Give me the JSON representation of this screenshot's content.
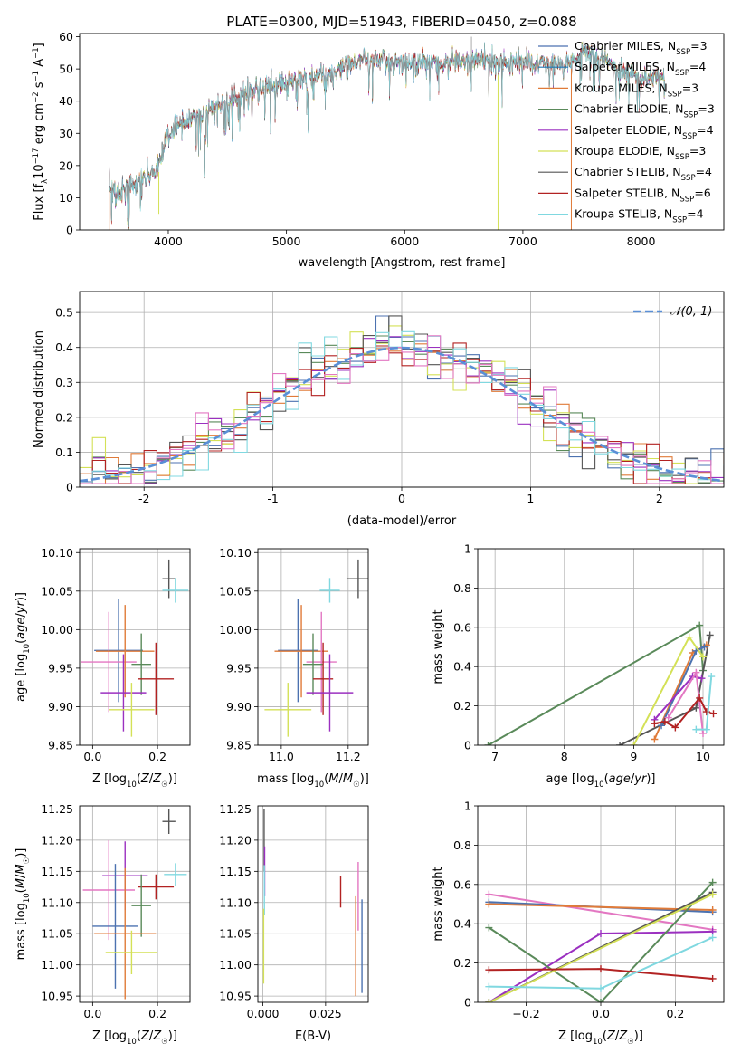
{
  "figure": {
    "title": "PLATE=0300, MJD=51943, FIBERID=0450, z=0.088"
  },
  "colors": {
    "chabrier_miles": "#4c72b0",
    "salpeter_miles": "#1f77b4",
    "kroupa_miles": "#e07b39",
    "chabrier_elodie": "#5a8a5a",
    "salpeter_elodie": "#9b30c0",
    "kroupa_elodie": "#d4e157",
    "chabrier_stelib": "#555555",
    "salpeter_stelib": "#b22222",
    "kroupa_stelib": "#80d8e0",
    "extra_pink": "#e377c2",
    "normal_curve": "#5a8fd6",
    "grid": "#b0b0b0"
  },
  "chart_data": [
    {
      "id": "spectrum",
      "type": "line",
      "title": "PLATE=0300, MJD=51943, FIBERID=0450, z=0.088",
      "xlabel": "wavelength [Angstrom, rest frame]",
      "ylabel": "Flux [f_λ 10^-17 erg cm^-2 s^-1 A^-1]",
      "xlim": [
        3250,
        8700
      ],
      "ylim": [
        0,
        61
      ],
      "xticks": [
        4000,
        5000,
        6000,
        7000,
        8000
      ],
      "yticks": [
        0,
        10,
        20,
        30,
        40,
        50,
        60
      ],
      "grid": false,
      "legend_position": "top-right",
      "legend": [
        {
          "label": "Chabrier MILES, N",
          "sub": "SSP",
          "suffix": "=3",
          "color": "#4c72b0"
        },
        {
          "label": "Salpeter MILES, N",
          "sub": "SSP",
          "suffix": "=4",
          "color": "#1f77b4"
        },
        {
          "label": "Kroupa MILES, N",
          "sub": "SSP",
          "suffix": "=3",
          "color": "#e07b39"
        },
        {
          "label": "Chabrier ELODIE, N",
          "sub": "SSP",
          "suffix": "=3",
          "color": "#5a8a5a"
        },
        {
          "label": "Salpeter ELODIE, N",
          "sub": "SSP",
          "suffix": "=4",
          "color": "#9b30c0"
        },
        {
          "label": "Kroupa ELODIE, N",
          "sub": "SSP",
          "suffix": "=3",
          "color": "#d4e157"
        },
        {
          "label": "Chabrier STELIB, N",
          "sub": "SSP",
          "suffix": "=4",
          "color": "#555555"
        },
        {
          "label": "Salpeter STELIB, N",
          "sub": "SSP",
          "suffix": "=6",
          "color": "#b22222"
        },
        {
          "label": "Kroupa STELIB, N",
          "sub": "SSP",
          "suffix": "=4",
          "color": "#80d8e0"
        }
      ],
      "continuum": {
        "x": [
          3500,
          3600,
          3700,
          3800,
          3900,
          3950,
          4000,
          4100,
          4200,
          4300,
          4400,
          4500,
          4600,
          4700,
          4800,
          4900,
          5000,
          5100,
          5200,
          5300,
          5400,
          5500,
          5600,
          5700,
          5800,
          5900,
          6000,
          6100,
          6200,
          6300,
          6400,
          6500,
          6600,
          6700,
          6800,
          6900,
          7000,
          7100,
          7200,
          7300,
          7400,
          7500,
          7600,
          7700,
          7800,
          7900,
          8000,
          8100,
          8200
        ],
        "y": [
          13,
          12,
          14,
          16,
          18,
          24,
          30,
          33,
          35,
          36,
          38,
          40,
          42,
          43,
          44,
          45,
          46,
          47,
          48,
          48,
          49,
          51,
          52,
          53,
          53,
          52,
          52,
          52,
          52,
          52,
          53,
          52,
          53,
          52,
          52,
          52,
          52,
          52,
          51,
          51,
          52,
          54,
          55,
          52,
          50,
          49,
          47,
          47,
          48
        ]
      },
      "spikes": [
        {
          "x": 3500,
          "y0": 0,
          "y1": 13,
          "color": "#e07b39"
        },
        {
          "x": 3920,
          "y0": 5,
          "y1": 18,
          "color": "#d4e157"
        },
        {
          "x": 6565,
          "y0": 52,
          "y1": 60,
          "color": "#aaaaaa"
        },
        {
          "x": 6790,
          "y0": 0,
          "y1": 48,
          "color": "#d4e157"
        },
        {
          "x": 7410,
          "y0": 0,
          "y1": 50,
          "color": "#e07b39"
        }
      ]
    },
    {
      "id": "residuals",
      "type": "histogram",
      "xlabel": "(data-model)/error",
      "ylabel": "Normed distribution",
      "xlim": [
        -2.5,
        2.5
      ],
      "ylim": [
        0,
        0.56
      ],
      "xticks": [
        -2,
        -1,
        0,
        1,
        2
      ],
      "yticks": [
        0.0,
        0.1,
        0.2,
        0.3,
        0.4,
        0.5
      ],
      "grid": true,
      "legend_position": "top-right",
      "legend": [
        {
          "label": "𝒩(0, 1)",
          "color": "#5a8fd6",
          "style": "dashed"
        }
      ],
      "bin_width": 0.1
    },
    {
      "id": "age_vs_Z",
      "type": "scatter",
      "xlabel": "Z [log10(Z/Z☉)]",
      "ylabel": "age [log10(age/yr)]",
      "xlim": [
        -0.04,
        0.3
      ],
      "ylim": [
        9.85,
        10.105
      ],
      "xticks": [
        0.0,
        0.2
      ],
      "xtick_labels": [
        "0.0",
        "0.2"
      ],
      "yticks": [
        9.85,
        9.9,
        9.95,
        10.0,
        10.05,
        10.1
      ],
      "ytick_labels": [
        "9.85",
        "9.90",
        "9.95",
        "10.00",
        "10.05",
        "10.10"
      ],
      "grid": true,
      "points": [
        {
          "x": 0.235,
          "y": 10.066,
          "xerr": 0.02,
          "yerr": 0.025,
          "color": "#555555"
        },
        {
          "x": 0.255,
          "y": 10.051,
          "xerr": 0.04,
          "yerr": 0.016,
          "color": "#80d8e0"
        },
        {
          "x": 0.08,
          "y": 9.973,
          "xerr": 0.075,
          "yerr": 0.067,
          "color": "#4c72b0"
        },
        {
          "x": 0.05,
          "y": 9.958,
          "xerr": 0.085,
          "yerr": 0.065,
          "color": "#e377c2"
        },
        {
          "x": 0.1,
          "y": 9.972,
          "xerr": 0.09,
          "yerr": 0.06,
          "color": "#e07b39"
        },
        {
          "x": 0.15,
          "y": 9.955,
          "xerr": 0.03,
          "yerr": 0.04,
          "color": "#5a8a5a"
        },
        {
          "x": 0.195,
          "y": 9.936,
          "xerr": 0.055,
          "yerr": 0.047,
          "color": "#b22222"
        },
        {
          "x": 0.095,
          "y": 9.918,
          "xerr": 0.07,
          "yerr": 0.05,
          "color": "#9b30c0"
        },
        {
          "x": 0.12,
          "y": 9.896,
          "xerr": 0.07,
          "yerr": 0.035,
          "color": "#d4e157"
        }
      ]
    },
    {
      "id": "age_vs_mass",
      "type": "scatter",
      "xlabel": "mass [log10(M/M☉)]",
      "ylabel": "",
      "xlim": [
        10.93,
        11.26
      ],
      "ylim": [
        9.85,
        10.105
      ],
      "xticks": [
        11.0,
        11.2
      ],
      "xtick_labels": [
        "11.0",
        "11.2"
      ],
      "yticks": [
        9.85,
        9.9,
        9.95,
        10.0,
        10.05,
        10.1
      ],
      "ytick_labels": [
        "9.85",
        "9.90",
        "9.95",
        "10.00",
        "10.05",
        "10.10"
      ],
      "grid": true,
      "points": [
        {
          "x": 11.23,
          "y": 10.066,
          "xerr": 0.035,
          "yerr": 0.025,
          "color": "#555555"
        },
        {
          "x": 11.145,
          "y": 10.051,
          "xerr": 0.03,
          "yerr": 0.016,
          "color": "#80d8e0"
        },
        {
          "x": 11.05,
          "y": 9.973,
          "xerr": 0.06,
          "yerr": 0.067,
          "color": "#4c72b0"
        },
        {
          "x": 11.06,
          "y": 9.972,
          "xerr": 0.08,
          "yerr": 0.06,
          "color": "#e07b39"
        },
        {
          "x": 11.12,
          "y": 9.958,
          "xerr": 0.045,
          "yerr": 0.065,
          "color": "#e377c2"
        },
        {
          "x": 11.095,
          "y": 9.955,
          "xerr": 0.03,
          "yerr": 0.04,
          "color": "#5a8a5a"
        },
        {
          "x": 11.125,
          "y": 9.936,
          "xerr": 0.03,
          "yerr": 0.047,
          "color": "#b22222"
        },
        {
          "x": 11.145,
          "y": 9.918,
          "xerr": 0.07,
          "yerr": 0.05,
          "color": "#9b30c0"
        },
        {
          "x": 11.02,
          "y": 9.896,
          "xerr": 0.07,
          "yerr": 0.035,
          "color": "#d4e157"
        }
      ]
    },
    {
      "id": "weight_vs_age",
      "type": "line",
      "xlabel": "age [log10(age/yr)]",
      "ylabel": "mass weight",
      "xlim": [
        6.75,
        10.3
      ],
      "ylim": [
        0,
        1.0
      ],
      "xticks": [
        7,
        8,
        9,
        10
      ],
      "yticks": [
        0.0,
        0.2,
        0.4,
        0.6,
        0.8,
        1.0
      ],
      "grid": true,
      "series": [
        {
          "color": "#5a8a5a",
          "x": [
            6.9,
            9.95,
            10.0
          ],
          "y": [
            0.0,
            0.61,
            0.38
          ]
        },
        {
          "color": "#555555",
          "x": [
            8.8,
            9.9,
            10.1
          ],
          "y": [
            0.0,
            0.19,
            0.56
          ]
        },
        {
          "color": "#e07b39",
          "x": [
            9.3,
            9.85,
            10.05
          ],
          "y": [
            0.03,
            0.47,
            0.51
          ]
        },
        {
          "color": "#4c72b0",
          "x": [
            9.4,
            9.9,
            10.02
          ],
          "y": [
            0.1,
            0.48,
            0.5
          ]
        },
        {
          "color": "#d4e157",
          "x": [
            9.0,
            9.8,
            10.0
          ],
          "y": [
            0.0,
            0.55,
            0.45
          ]
        },
        {
          "color": "#9b30c0",
          "x": [
            9.3,
            9.85,
            9.98
          ],
          "y": [
            0.13,
            0.35,
            0.34
          ]
        },
        {
          "color": "#e377c2",
          "x": [
            9.5,
            9.9,
            10.0
          ],
          "y": [
            0.14,
            0.37,
            0.06
          ]
        },
        {
          "color": "#b22222",
          "x": [
            9.3,
            9.45,
            9.6,
            9.95,
            10.05,
            10.15
          ],
          "y": [
            0.11,
            0.12,
            0.09,
            0.24,
            0.17,
            0.16
          ]
        },
        {
          "color": "#80d8e0",
          "x": [
            9.9,
            10.05,
            10.12
          ],
          "y": [
            0.08,
            0.08,
            0.35
          ]
        }
      ]
    },
    {
      "id": "mass_vs_Z",
      "type": "scatter",
      "xlabel": "Z [log10(Z/Z☉)]",
      "ylabel": "mass [log10(M/M☉)]",
      "xlim": [
        -0.04,
        0.3
      ],
      "ylim": [
        10.94,
        11.255
      ],
      "xticks": [
        0.0,
        0.2
      ],
      "xtick_labels": [
        "0.0",
        "0.2"
      ],
      "yticks": [
        10.95,
        11.0,
        11.05,
        11.1,
        11.15,
        11.2,
        11.25
      ],
      "ytick_labels": [
        "10.95",
        "11.00",
        "11.05",
        "11.10",
        "11.15",
        "11.20",
        "11.25"
      ],
      "grid": true,
      "points": [
        {
          "x": 0.235,
          "y": 11.23,
          "xerr": 0.02,
          "yerr": 0.02,
          "color": "#555555"
        },
        {
          "x": 0.255,
          "y": 11.145,
          "xerr": 0.035,
          "yerr": 0.018,
          "color": "#80d8e0"
        },
        {
          "x": 0.1,
          "y": 11.143,
          "xerr": 0.07,
          "yerr": 0.055,
          "color": "#9b30c0"
        },
        {
          "x": 0.05,
          "y": 11.12,
          "xerr": 0.08,
          "yerr": 0.08,
          "color": "#e377c2"
        },
        {
          "x": 0.195,
          "y": 11.125,
          "xerr": 0.055,
          "yerr": 0.02,
          "color": "#b22222"
        },
        {
          "x": 0.15,
          "y": 11.095,
          "xerr": 0.03,
          "yerr": 0.05,
          "color": "#5a8a5a"
        },
        {
          "x": 0.07,
          "y": 11.062,
          "xerr": 0.07,
          "yerr": 0.1,
          "color": "#4c72b0"
        },
        {
          "x": 0.1,
          "y": 11.05,
          "xerr": 0.095,
          "yerr": 0.105,
          "color": "#e07b39"
        },
        {
          "x": 0.12,
          "y": 11.02,
          "xerr": 0.08,
          "yerr": 0.035,
          "color": "#d4e157"
        }
      ]
    },
    {
      "id": "mass_vs_ebv",
      "type": "scatter",
      "xlabel": "E(B-V)",
      "ylabel": "",
      "xlim": [
        -0.002,
        0.042
      ],
      "ylim": [
        10.94,
        11.255
      ],
      "xticks": [
        0.0,
        0.025
      ],
      "xtick_labels": [
        "0.000",
        "0.025"
      ],
      "yticks": [
        10.95,
        11.0,
        11.05,
        11.1,
        11.15,
        11.2,
        11.25
      ],
      "ytick_labels": [
        "10.95",
        "11.00",
        "11.05",
        "11.10",
        "11.15",
        "11.20",
        "11.25"
      ],
      "grid": true,
      "points": [
        {
          "x": 0.0005,
          "y": 11.2,
          "xerr": 0,
          "yerr": 0.05,
          "color": "#555555"
        },
        {
          "x": 0.0007,
          "y": 11.15,
          "xerr": 0,
          "yerr": 0.04,
          "color": "#9b30c0"
        },
        {
          "x": 0.0006,
          "y": 11.12,
          "xerr": 0,
          "yerr": 0.04,
          "color": "#80d8e0"
        },
        {
          "x": 0.0003,
          "y": 11.03,
          "xerr": 0,
          "yerr": 0.06,
          "color": "#d4e157"
        },
        {
          "x": 0.031,
          "y": 11.117,
          "xerr": 0,
          "yerr": 0.025,
          "color": "#b22222"
        },
        {
          "x": 0.037,
          "y": 11.03,
          "xerr": 0,
          "yerr": 0.08,
          "color": "#e07b39"
        },
        {
          "x": 0.038,
          "y": 11.11,
          "xerr": 0,
          "yerr": 0.055,
          "color": "#e377c2"
        },
        {
          "x": 0.0395,
          "y": 11.03,
          "xerr": 0,
          "yerr": 0.075,
          "color": "#4c72b0"
        }
      ]
    },
    {
      "id": "weight_vs_Z",
      "type": "line",
      "xlabel": "Z [log10(Z/Z☉)]",
      "ylabel": "mass weight",
      "xlim": [
        -0.33,
        0.33
      ],
      "ylim": [
        0,
        1.0
      ],
      "xticks": [
        -0.2,
        0.0,
        0.2
      ],
      "xtick_labels": [
        "−0.2",
        "0.0",
        "0.2"
      ],
      "yticks": [
        0.0,
        0.2,
        0.4,
        0.6,
        0.8,
        1.0
      ],
      "grid": true,
      "series": [
        {
          "color": "#e377c2",
          "x": [
            -0.3,
            0.3
          ],
          "y": [
            0.55,
            0.37
          ]
        },
        {
          "color": "#4c72b0",
          "x": [
            -0.3,
            0.3
          ],
          "y": [
            0.51,
            0.46
          ]
        },
        {
          "color": "#e07b39",
          "x": [
            -0.3,
            0.3
          ],
          "y": [
            0.5,
            0.47
          ]
        },
        {
          "color": "#9b30c0",
          "x": [
            -0.3,
            0.0,
            0.3
          ],
          "y": [
            0.0,
            0.35,
            0.36
          ]
        },
        {
          "color": "#5a8a5a",
          "x": [
            -0.3,
            0.0,
            0.3
          ],
          "y": [
            0.38,
            0.0,
            0.61
          ]
        },
        {
          "color": "#555555",
          "x": [
            -0.3,
            0.3
          ],
          "y": [
            0.0,
            0.56
          ]
        },
        {
          "color": "#d4e157",
          "x": [
            -0.3,
            0.3
          ],
          "y": [
            0.0,
            0.55
          ]
        },
        {
          "color": "#b22222",
          "x": [
            -0.3,
            0.0,
            0.3
          ],
          "y": [
            0.165,
            0.17,
            0.12
          ]
        },
        {
          "color": "#80d8e0",
          "x": [
            -0.3,
            0.0,
            0.3
          ],
          "y": [
            0.08,
            0.07,
            0.33
          ]
        }
      ]
    }
  ]
}
